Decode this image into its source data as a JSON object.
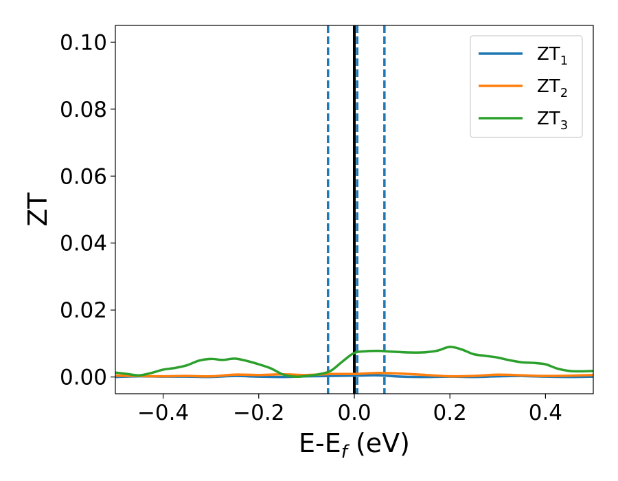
{
  "chart_data": {
    "type": "line",
    "xlabel_main": "E-E",
    "xlabel_sub": "f",
    "xlabel_unit": " (eV)",
    "ylabel": "ZT",
    "xlim": [
      -0.5,
      0.5
    ],
    "ylim": [
      -0.005,
      0.105
    ],
    "xticks": [
      -0.4,
      -0.2,
      0.0,
      0.2,
      0.4
    ],
    "xtick_labels": [
      "−0.4",
      "−0.2",
      "0.0",
      "0.2",
      "0.4"
    ],
    "yticks": [
      0.0,
      0.02,
      0.04,
      0.06,
      0.08,
      0.1
    ],
    "ytick_labels": [
      "0.00",
      "0.02",
      "0.04",
      "0.06",
      "0.08",
      "0.10"
    ],
    "grid": false,
    "legend_position": "top-right",
    "vertical_lines": [
      {
        "x": 0.0,
        "style": "solid",
        "color": "#000000"
      },
      {
        "x": -0.055,
        "style": "dashed",
        "color": "#1f77b4"
      },
      {
        "x": 0.006,
        "style": "dashed",
        "color": "#1f77b4"
      },
      {
        "x": 0.063,
        "style": "dashed",
        "color": "#1f77b4"
      }
    ],
    "series": [
      {
        "name": "ZT",
        "sub": "1",
        "color": "#1f77b4",
        "x": [
          -0.5,
          -0.45,
          -0.4,
          -0.35,
          -0.3,
          -0.25,
          -0.2,
          -0.15,
          -0.1,
          -0.05,
          0.0,
          0.05,
          0.1,
          0.15,
          0.2,
          0.25,
          0.3,
          0.35,
          0.4,
          0.45,
          0.5
        ],
        "values": [
          0.0,
          0.0002,
          0.0001,
          0.0001,
          0.0,
          0.0003,
          0.0001,
          0.0,
          0.0002,
          0.0003,
          0.0004,
          0.0005,
          0.0001,
          0.0,
          0.0001,
          0.0,
          0.0002,
          0.0003,
          0.0001,
          0.0,
          0.0001
        ]
      },
      {
        "name": "ZT",
        "sub": "2",
        "color": "#ff7f0e",
        "x": [
          -0.5,
          -0.45,
          -0.4,
          -0.35,
          -0.3,
          -0.25,
          -0.2,
          -0.15,
          -0.1,
          -0.05,
          0.0,
          0.05,
          0.1,
          0.15,
          0.2,
          0.25,
          0.3,
          0.35,
          0.4,
          0.45,
          0.5
        ],
        "values": [
          0.0004,
          0.0003,
          0.0002,
          0.0003,
          0.0002,
          0.0007,
          0.0006,
          0.0008,
          0.0006,
          0.0009,
          0.0009,
          0.0012,
          0.001,
          0.0006,
          0.0002,
          0.0003,
          0.0007,
          0.0005,
          0.0003,
          0.0004,
          0.0006
        ]
      },
      {
        "name": "ZT",
        "sub": "3",
        "color": "#2ca02c",
        "x": [
          -0.5,
          -0.475,
          -0.45,
          -0.425,
          -0.4,
          -0.375,
          -0.35,
          -0.325,
          -0.3,
          -0.275,
          -0.25,
          -0.225,
          -0.2,
          -0.175,
          -0.15,
          -0.125,
          -0.1,
          -0.075,
          -0.05,
          -0.025,
          0.0,
          0.025,
          0.05,
          0.075,
          0.1,
          0.125,
          0.15,
          0.175,
          0.2,
          0.225,
          0.25,
          0.275,
          0.3,
          0.325,
          0.35,
          0.375,
          0.4,
          0.425,
          0.45,
          0.475,
          0.5
        ],
        "values": [
          0.0013,
          0.0009,
          0.0005,
          0.0012,
          0.0022,
          0.0027,
          0.0035,
          0.0049,
          0.0054,
          0.0051,
          0.0055,
          0.0048,
          0.0038,
          0.0026,
          0.0008,
          0.0001,
          0.0003,
          0.0008,
          0.0018,
          0.0046,
          0.0072,
          0.0077,
          0.0078,
          0.0076,
          0.0074,
          0.0073,
          0.0074,
          0.0079,
          0.009,
          0.0082,
          0.0068,
          0.0063,
          0.0058,
          0.005,
          0.0044,
          0.0042,
          0.0038,
          0.0025,
          0.0018,
          0.0017,
          0.0018
        ]
      }
    ]
  }
}
